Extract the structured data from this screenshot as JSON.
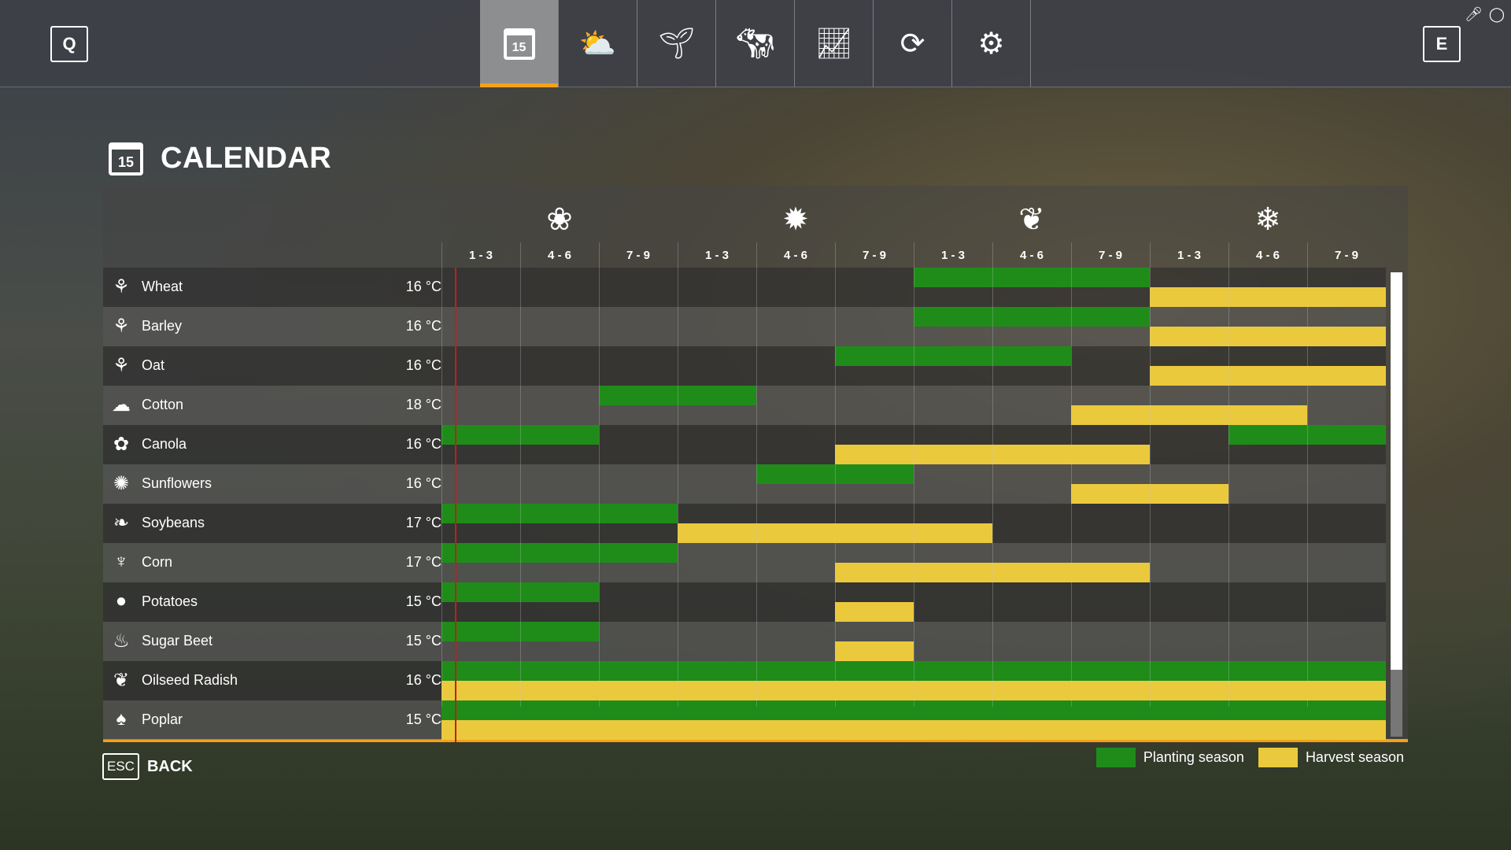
{
  "topbar": {
    "left_key": "Q",
    "right_key": "E",
    "tabs": [
      {
        "icon": "calendar-icon",
        "label": "15",
        "active": true
      },
      {
        "icon": "weather-icon"
      },
      {
        "icon": "sprout-icon"
      },
      {
        "icon": "cow-icon"
      },
      {
        "icon": "stats-icon"
      },
      {
        "icon": "cycle-icon"
      },
      {
        "icon": "settings-icon"
      }
    ]
  },
  "page": {
    "title": "CALENDAR",
    "calendar_day": "15"
  },
  "seasons": [
    {
      "name": "spring",
      "icon": "flower-icon",
      "glyph": "❀"
    },
    {
      "name": "summer",
      "icon": "sun-icon",
      "glyph": "✹"
    },
    {
      "name": "autumn",
      "icon": "leaf-icon",
      "glyph": "❦"
    },
    {
      "name": "winter",
      "icon": "snowflake-icon",
      "glyph": "❄"
    }
  ],
  "months": [
    "1 - 3",
    "4 - 6",
    "7 - 9",
    "1 - 3",
    "4 - 6",
    "7 - 9",
    "1 - 3",
    "4 - 6",
    "7 - 9",
    "1 - 3",
    "4 - 6",
    "7 - 9"
  ],
  "colors": {
    "planting": "#1f8c1a",
    "harvest": "#ebc93d",
    "current_marker": "#c0201a",
    "accent": "#f5a01a"
  },
  "crops": [
    {
      "name": "Wheat",
      "temp": "16 °C",
      "glyph": "⚘",
      "planting": [
        [
          6,
          8
        ]
      ],
      "harvest": [
        [
          9,
          11
        ]
      ]
    },
    {
      "name": "Barley",
      "temp": "16 °C",
      "glyph": "⚘",
      "planting": [
        [
          6,
          8
        ]
      ],
      "harvest": [
        [
          9,
          11
        ]
      ]
    },
    {
      "name": "Oat",
      "temp": "16 °C",
      "glyph": "⚘",
      "planting": [
        [
          5,
          7
        ]
      ],
      "harvest": [
        [
          9,
          11
        ]
      ]
    },
    {
      "name": "Cotton",
      "temp": "18 °C",
      "glyph": "☁",
      "planting": [
        [
          2,
          3
        ]
      ],
      "harvest": [
        [
          8,
          10
        ]
      ]
    },
    {
      "name": "Canola",
      "temp": "16 °C",
      "glyph": "✿",
      "planting": [
        [
          0,
          1
        ],
        [
          10,
          11
        ]
      ],
      "harvest": [
        [
          5,
          8
        ]
      ]
    },
    {
      "name": "Sunflowers",
      "temp": "16 °C",
      "glyph": "✺",
      "planting": [
        [
          4,
          5
        ]
      ],
      "harvest": [
        [
          8,
          9
        ]
      ]
    },
    {
      "name": "Soybeans",
      "temp": "17 °C",
      "glyph": "❧",
      "planting": [
        [
          0,
          2
        ]
      ],
      "harvest": [
        [
          3,
          6
        ]
      ]
    },
    {
      "name": "Corn",
      "temp": "17 °C",
      "glyph": "♆",
      "planting": [
        [
          0,
          2
        ]
      ],
      "harvest": [
        [
          5,
          8
        ]
      ]
    },
    {
      "name": "Potatoes",
      "temp": "15 °C",
      "glyph": "●",
      "planting": [
        [
          0,
          1
        ]
      ],
      "harvest": [
        [
          5,
          5
        ]
      ]
    },
    {
      "name": "Sugar Beet",
      "temp": "15 °C",
      "glyph": "♨",
      "planting": [
        [
          0,
          1
        ]
      ],
      "harvest": [
        [
          5,
          5
        ]
      ]
    },
    {
      "name": "Oilseed Radish",
      "temp": "16 °C",
      "glyph": "❦",
      "planting": [
        [
          0,
          11
        ]
      ],
      "harvest": [
        [
          0,
          11
        ]
      ]
    },
    {
      "name": "Poplar",
      "temp": "15 °C",
      "glyph": "♠",
      "planting": [
        [
          0,
          11
        ]
      ],
      "harvest": [
        [
          0,
          11
        ]
      ]
    }
  ],
  "footer": {
    "esc_key": "ESC",
    "back_label": "BACK"
  },
  "legend": {
    "planting": "Planting season",
    "harvest": "Harvest season"
  }
}
